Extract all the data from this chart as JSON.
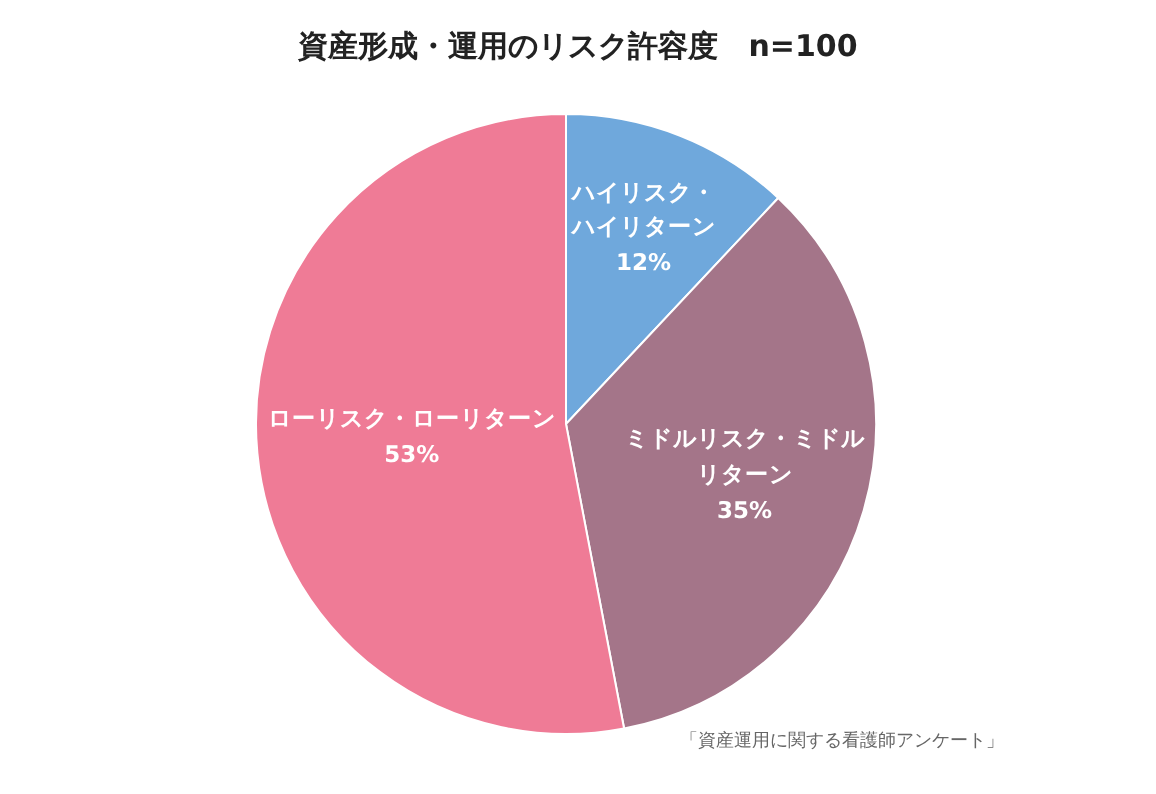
{
  "chart_data": {
    "type": "pie",
    "title": "資産形成・運用のリスク許容度　n=100",
    "categories": [
      "ハイリスク・ハイリターン",
      "ミドルリスク・ミドルリターン",
      "ローリスク・ローリターン"
    ],
    "values": [
      12,
      35,
      53
    ],
    "colors": [
      "#6fa8dc",
      "#a47589",
      "#ef7b96"
    ],
    "value_labels": [
      "12%",
      "35%",
      "53%"
    ],
    "annotations": [
      "「資産運用に関する看護師アンケート」"
    ]
  }
}
